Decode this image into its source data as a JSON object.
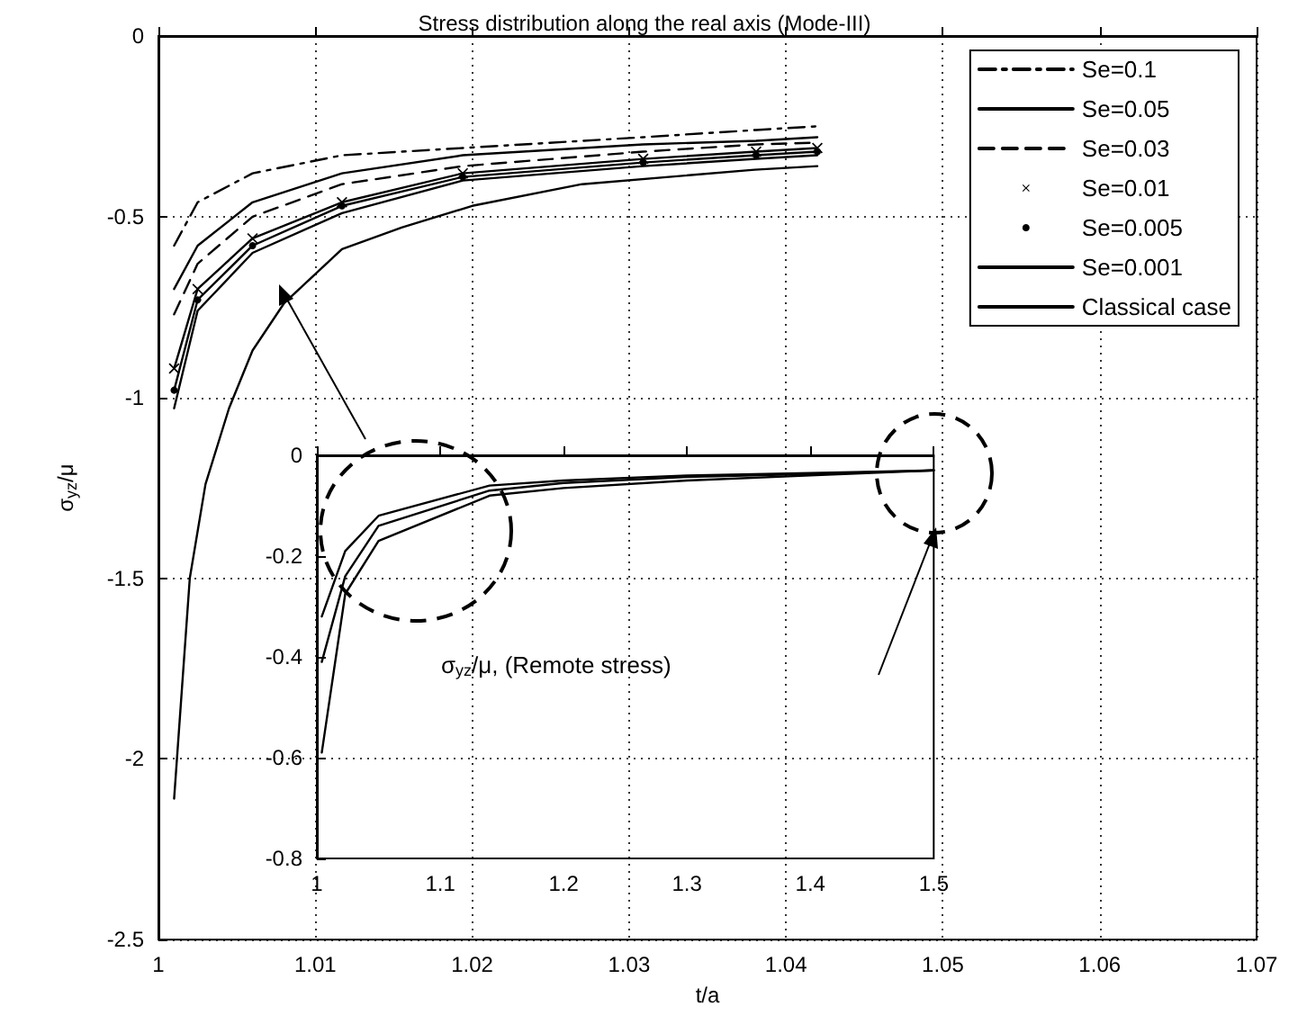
{
  "chart_data": [
    {
      "type": "line",
      "title": "Stress distribution along the real axis (Mode-III)",
      "xlabel": "t/a",
      "ylabel": "σ$_{yz}$/μ",
      "xlim": [
        1,
        1.07
      ],
      "xticks": [
        1,
        1.01,
        1.02,
        1.03,
        1.04,
        1.05,
        1.06,
        1.07
      ],
      "ylim": [
        -2.5,
        0
      ],
      "yticks": [
        -2.5,
        -2,
        -1.5,
        -1,
        -0.5,
        0
      ],
      "grid": true,
      "legend": "top right",
      "line_style": "solid",
      "series": [
        {
          "name": "Se=0.1",
          "color": "#000000",
          "line_style": "dashdot",
          "x": [
            1.001,
            1.0025,
            1.006,
            1.0117,
            1.0194,
            1.0309,
            1.0381,
            1.042
          ],
          "values": [
            -0.58,
            -0.46,
            -0.38,
            -0.33,
            -0.31,
            -0.28,
            -0.26,
            -0.25
          ]
        },
        {
          "name": "Se=0.05",
          "color": "#000000",
          "x": [
            1.001,
            1.0025,
            1.006,
            1.0117,
            1.0194,
            1.0309,
            1.0381,
            1.042
          ],
          "values": [
            -0.7,
            -0.58,
            -0.46,
            -0.38,
            -0.33,
            -0.3,
            -0.29,
            -0.28
          ]
        },
        {
          "name": "Se=0.03",
          "color": "#000000",
          "line_style": "dashed",
          "x": [
            1.001,
            1.0025,
            1.006,
            1.0117,
            1.0194,
            1.0309,
            1.0381,
            1.042
          ],
          "values": [
            -0.77,
            -0.63,
            -0.5,
            -0.41,
            -0.36,
            -0.32,
            -0.3,
            -0.295
          ]
        },
        {
          "name": "Se=0.01",
          "color": "#000000",
          "marker": "cross",
          "x": [
            1.001,
            1.0025,
            1.006,
            1.0117,
            1.0194,
            1.0309,
            1.0381,
            1.042
          ],
          "values": [
            -0.92,
            -0.7,
            -0.56,
            -0.46,
            -0.38,
            -0.34,
            -0.32,
            -0.31
          ]
        },
        {
          "name": "Se=0.005",
          "color": "#000000",
          "marker": "circle",
          "x": [
            1.001,
            1.0025,
            1.006,
            1.0117,
            1.0194,
            1.0309,
            1.0381,
            1.042
          ],
          "values": [
            -0.98,
            -0.73,
            -0.58,
            -0.47,
            -0.39,
            -0.35,
            -0.33,
            -0.32
          ]
        },
        {
          "name": "Se=0.001",
          "color": "#000000",
          "x": [
            1.001,
            1.0025,
            1.006,
            1.0117,
            1.0194,
            1.0309,
            1.0381,
            1.042
          ],
          "values": [
            -1.03,
            -0.76,
            -0.6,
            -0.49,
            -0.4,
            -0.36,
            -0.34,
            -0.33
          ]
        },
        {
          "name": "Classical case",
          "color": "#000000",
          "x": [
            1.001,
            1.002,
            1.003,
            1.0045,
            1.006,
            1.008,
            1.0117,
            1.0155,
            1.02,
            1.027,
            1.038,
            1.042
          ],
          "values": [
            -2.11,
            -1.5,
            -1.24,
            -1.03,
            -0.87,
            -0.74,
            -0.59,
            -0.53,
            -0.47,
            -0.41,
            -0.37,
            -0.36
          ]
        }
      ]
    },
    {
      "type": "line",
      "annotations": [
        "σ$_{yz}$/μ, (Remote stress)"
      ],
      "xlim": [
        1,
        1.5
      ],
      "xticks": [
        1,
        1.1,
        1.2,
        1.3,
        1.4,
        1.5
      ],
      "ylim": [
        -0.8,
        0
      ],
      "yticks": [
        -0.8,
        -0.6,
        -0.4,
        -0.2,
        0
      ],
      "grid": false,
      "line_style": "solid",
      "series": [
        {
          "color": "#000000",
          "x": [
            1.004,
            1.023,
            1.05,
            1.14,
            1.2,
            1.3,
            1.4,
            1.5
          ],
          "values": [
            -0.32,
            -0.19,
            -0.12,
            -0.06,
            -0.05,
            -0.04,
            -0.035,
            -0.03
          ]
        },
        {
          "color": "#000000",
          "x": [
            1.004,
            1.023,
            1.05,
            1.14,
            1.2,
            1.3,
            1.4,
            1.5
          ],
          "values": [
            -0.41,
            -0.24,
            -0.14,
            -0.07,
            -0.055,
            -0.043,
            -0.037,
            -0.03
          ]
        },
        {
          "color": "#000000",
          "x": [
            1.004,
            1.023,
            1.05,
            1.14,
            1.2,
            1.3,
            1.4,
            1.5
          ],
          "values": [
            -0.59,
            -0.275,
            -0.17,
            -0.08,
            -0.065,
            -0.05,
            -0.04,
            -0.03
          ]
        }
      ]
    }
  ]
}
